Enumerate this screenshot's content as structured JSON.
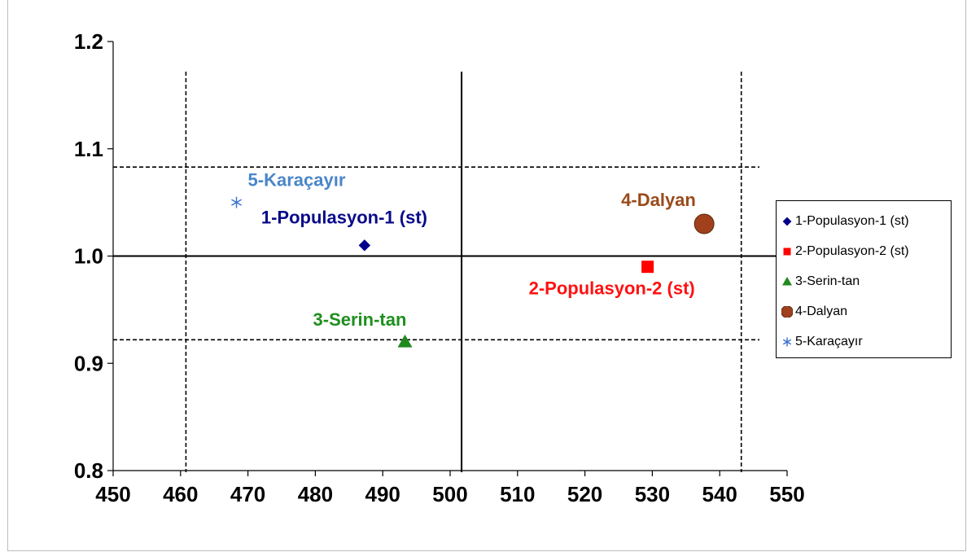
{
  "chart_data": {
    "type": "scatter",
    "title": "",
    "xlabel": "",
    "ylabel": "",
    "xlim": [
      450,
      550
    ],
    "ylim": [
      0.8,
      1.2
    ],
    "x_ticks": [
      "450",
      "460",
      "470",
      "480",
      "490",
      "500",
      "510",
      "520",
      "530",
      "540",
      "550"
    ],
    "y_ticks": [
      "0.8",
      "0.9",
      "1.0",
      "1.1",
      "1.2"
    ],
    "grid": false,
    "legend_position": "right",
    "series": [
      {
        "name": "1-Populasyon-1 (st)",
        "label": "1-Populasyon-1 (st)",
        "x": 487.3,
        "y": 1.01,
        "marker": "diamond",
        "color": "#00008b",
        "label_color": "#0a0a8a"
      },
      {
        "name": "2-Populasyon-2 (st)",
        "label": "2-Populasyon-2 (st)",
        "x": 529.3,
        "y": 0.99,
        "marker": "square",
        "color": "#ff0000",
        "label_color": "#ff1111"
      },
      {
        "name": "3-Serin-tan",
        "label": "3-Serin-tan",
        "x": 493.3,
        "y": 0.92,
        "marker": "triangle",
        "color": "#1f8a1f",
        "label_color": "#1e8f1e"
      },
      {
        "name": "4-Dalyan",
        "label": "4-Dalyan",
        "x": 537.7,
        "y": 1.03,
        "marker": "circle",
        "color": "#a0401c",
        "label_color": "#9a4a1a"
      },
      {
        "name": "5-Karaçayır",
        "label": "5-Karaçayır",
        "x": 468.3,
        "y": 1.05,
        "marker": "asterisk",
        "color": "#3a6fd0",
        "label_color": "#4a86c8"
      }
    ],
    "reference_lines": {
      "vertical_solid": 501.7,
      "vertical_dashed": [
        460.8,
        543.2
      ],
      "horizontal_solid": 1.0,
      "horizontal_dashed": [
        1.083,
        0.922
      ]
    }
  }
}
